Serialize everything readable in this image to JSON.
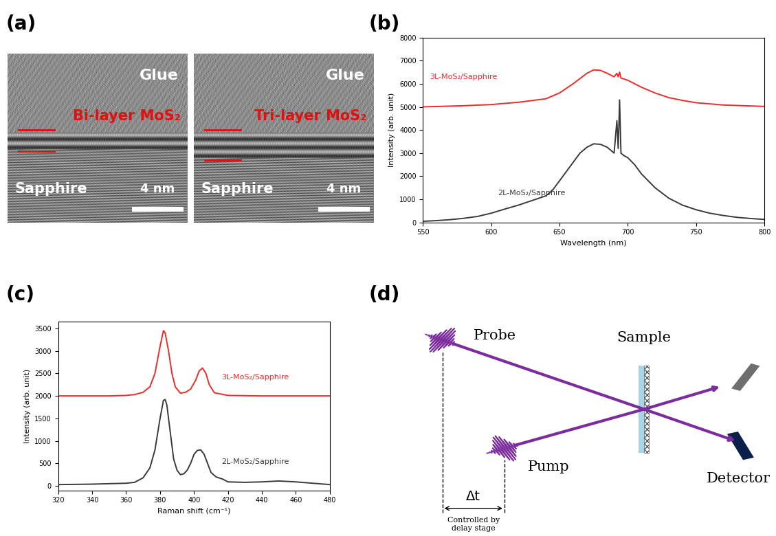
{
  "panel_labels": [
    "(a)",
    "(b)",
    "(c)",
    "(d)"
  ],
  "tem_images": [
    {
      "top": "Glue",
      "layer": "Bi-layer MoS₂",
      "layers": 2,
      "bottom": "Sapphire",
      "scale_bar": "4 nm"
    },
    {
      "top": "Glue",
      "layer": "Tri-layer MoS₂",
      "layers": 3,
      "bottom": "Sapphire",
      "scale_bar": "4 nm"
    }
  ],
  "chart_data": [
    {
      "type": "line",
      "x_label": "Wavelength (nm)",
      "y_label": "Intensity (arb. unit)",
      "xlim": [
        550,
        800
      ],
      "xticks": [
        550,
        600,
        650,
        700,
        750,
        800
      ],
      "ylim": [
        0,
        8000
      ],
      "yticks": [
        0,
        1000,
        2000,
        3000,
        4000,
        5000,
        6000,
        7000,
        8000
      ],
      "series": [
        {
          "name": "3L-MoS₂/Sapphire",
          "color": "#ee2a2a",
          "x": [
            550,
            580,
            600,
            620,
            640,
            650,
            660,
            670,
            675,
            680,
            685,
            690,
            692,
            693,
            694,
            695,
            700,
            710,
            720,
            730,
            740,
            750,
            770,
            800
          ],
          "values": [
            5000,
            5050,
            5100,
            5200,
            5350,
            5600,
            6000,
            6450,
            6600,
            6580,
            6450,
            6300,
            6450,
            6300,
            6500,
            6250,
            6150,
            5850,
            5600,
            5400,
            5280,
            5180,
            5080,
            5020
          ]
        },
        {
          "name": "2L-MoS₂/Sapphire",
          "color": "#3a3a3a",
          "x": [
            550,
            560,
            570,
            580,
            590,
            600,
            610,
            620,
            630,
            640,
            645,
            650,
            655,
            660,
            665,
            670,
            675,
            680,
            685,
            690,
            692,
            693,
            694,
            695,
            697,
            700,
            705,
            710,
            715,
            720,
            730,
            740,
            750,
            760,
            770,
            780,
            790,
            800
          ],
          "values": [
            50,
            80,
            120,
            180,
            260,
            400,
            580,
            750,
            950,
            1150,
            1400,
            1800,
            2200,
            2600,
            3000,
            3250,
            3400,
            3380,
            3250,
            3000,
            4400,
            3200,
            5300,
            3000,
            2900,
            2800,
            2500,
            2100,
            1800,
            1500,
            1050,
            750,
            550,
            400,
            300,
            220,
            170,
            130
          ]
        }
      ]
    },
    {
      "type": "line",
      "x_label": "Raman shift (cm⁻¹)",
      "y_label": "Intensity (arb. unit)",
      "xlim": [
        320,
        480
      ],
      "xticks": [
        320,
        340,
        360,
        380,
        400,
        420,
        440,
        460,
        480
      ],
      "ylim": [
        -100,
        3650
      ],
      "yticks": [
        0,
        500,
        1000,
        1500,
        2000,
        2500,
        3000,
        3500
      ],
      "series": [
        {
          "name": "3L-MoS₂/Sapphire",
          "color": "#ee2a2a",
          "x": [
            320,
            350,
            360,
            365,
            370,
            374,
            377,
            380,
            382,
            383,
            385,
            387,
            389,
            392,
            395,
            398,
            401,
            403,
            405,
            407,
            409,
            412,
            420,
            440,
            460,
            480
          ],
          "values": [
            2000,
            2000,
            2010,
            2030,
            2080,
            2200,
            2500,
            3100,
            3450,
            3400,
            3000,
            2500,
            2200,
            2060,
            2080,
            2150,
            2350,
            2550,
            2620,
            2500,
            2250,
            2070,
            2010,
            2000,
            2000,
            2000
          ]
        },
        {
          "name": "2L-MoS₂/Sapphire",
          "color": "#3a3a3a",
          "x": [
            320,
            340,
            350,
            360,
            365,
            370,
            374,
            377,
            380,
            382,
            383,
            384,
            386,
            388,
            390,
            392,
            394,
            396,
            398,
            400,
            402,
            404,
            406,
            408,
            410,
            413,
            417,
            420,
            430,
            440,
            450,
            460,
            470,
            480
          ],
          "values": [
            30,
            40,
            50,
            60,
            80,
            180,
            400,
            800,
            1500,
            1900,
            1920,
            1800,
            1200,
            600,
            350,
            250,
            270,
            350,
            500,
            700,
            790,
            800,
            700,
            500,
            300,
            200,
            150,
            90,
            80,
            90,
            110,
            90,
            60,
            30
          ]
        }
      ]
    }
  ],
  "diagram": {
    "probe": "Probe",
    "pump": "Pump",
    "sample": "Sample",
    "detector": "Detector",
    "delay": "Δt",
    "delay_note": "Controlled by\ndelay stage"
  }
}
